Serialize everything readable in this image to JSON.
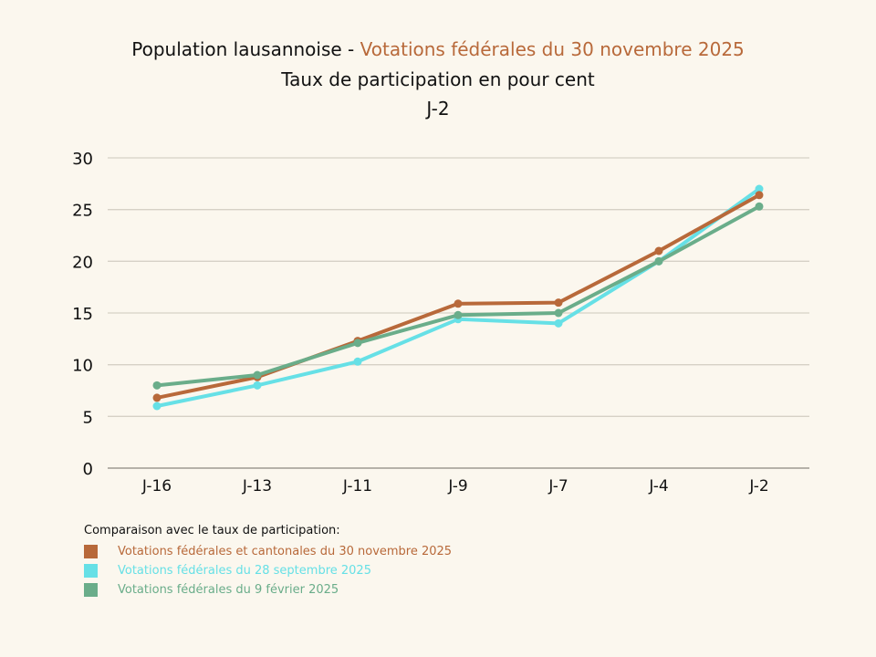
{
  "title": {
    "prefix": "Population lausannoise - ",
    "highlight": "Votations fédérales du 30 novembre 2025",
    "subtitle": "Taux de participation en pour cent",
    "subtitle2": "J-2"
  },
  "colors": {
    "accent": "#b8693a",
    "background": "#fbf7ee"
  },
  "chart_data": {
    "type": "line",
    "title": "Population lausannoise - Votations fédérales du 30 novembre 2025",
    "subtitle": "Taux de participation en pour cent — J-2",
    "xlabel": "",
    "ylabel": "",
    "categories": [
      "J-16",
      "J-13",
      "J-11",
      "J-9",
      "J-7",
      "J-4",
      "J-2"
    ],
    "ylim": [
      0,
      30
    ],
    "yticks": [
      0,
      5,
      10,
      15,
      20,
      25,
      30
    ],
    "grid": true,
    "legend_title": "Comparaison avec le taux de participation:",
    "legend_position": "bottom-left",
    "series": [
      {
        "name": "Votations fédérales et cantonales du 30 novembre 2025",
        "color": "#b8693a",
        "values": [
          6.8,
          8.8,
          12.3,
          15.9,
          16.0,
          21.0,
          26.4
        ]
      },
      {
        "name": "Votations fédérales du 28 septembre 2025",
        "color": "#66e0e6",
        "values": [
          6.0,
          8.0,
          10.3,
          14.4,
          14.0,
          20.0,
          27.0
        ]
      },
      {
        "name": "Votations fédérales du 9 février 2025",
        "color": "#6aad8a",
        "values": [
          8.0,
          9.0,
          12.1,
          14.8,
          15.0,
          20.0,
          25.3
        ]
      }
    ]
  }
}
